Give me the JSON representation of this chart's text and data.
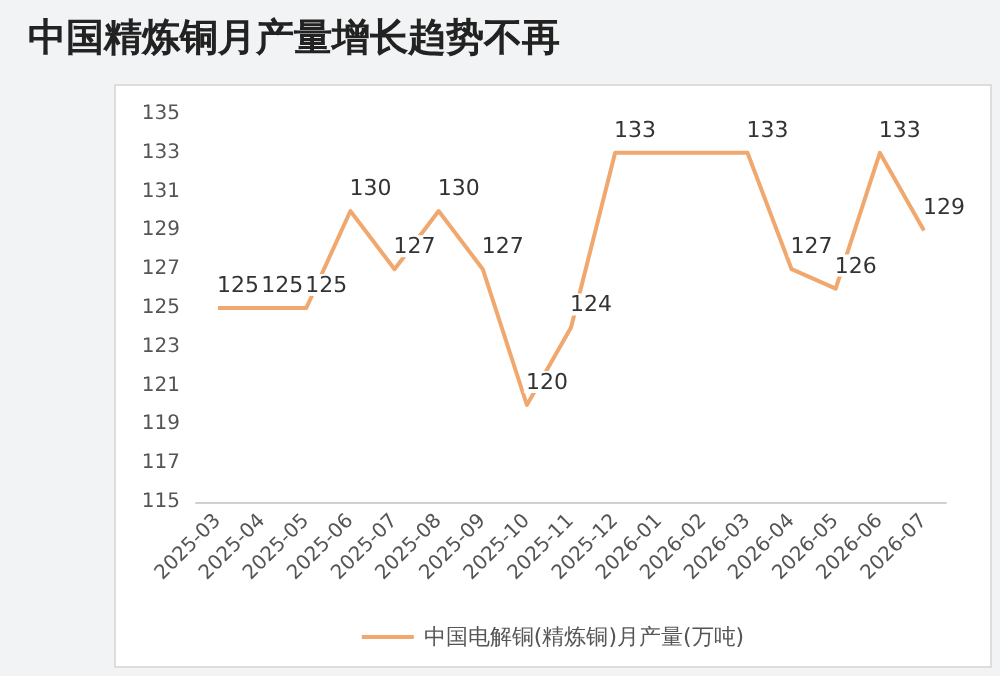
{
  "chart_data": {
    "type": "line",
    "title": "中国精炼铜月产量增长趋势不再",
    "categories": [
      "2025-03",
      "2025-04",
      "2025-05",
      "2025-06",
      "2025-07",
      "2025-08",
      "2025-09",
      "2025-10",
      "2025-11",
      "2025-12",
      "2026-01",
      "2026-02",
      "2026-03",
      "2026-04",
      "2026-05",
      "2026-06",
      "2026-07"
    ],
    "series": [
      {
        "name": "中国电解铜(精炼铜)月产量(万吨)",
        "color": "#f0a86e",
        "values": [
          125,
          125,
          125,
          130,
          127,
          130,
          127,
          120,
          124,
          133,
          133,
          133,
          133,
          127,
          126,
          133,
          129
        ],
        "value_labels": [
          "125",
          "125",
          "125",
          "130",
          "127",
          "130",
          "127",
          "120",
          "124",
          "133",
          null,
          null,
          "133",
          "127",
          "126",
          "133",
          "129"
        ]
      }
    ],
    "ylim": [
      115,
      135
    ],
    "yticks": [
      115,
      117,
      119,
      121,
      123,
      125,
      127,
      129,
      131,
      133,
      135
    ],
    "grid": false,
    "legend": "bottom",
    "marker": "none",
    "line_style": "solid"
  }
}
